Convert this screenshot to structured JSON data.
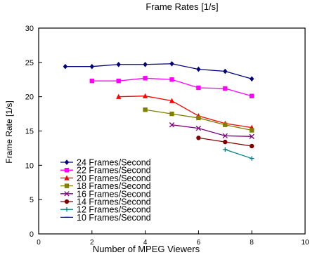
{
  "chart_data": {
    "type": "line",
    "title": "Frame Rates [1/s]",
    "xlabel": "Number of MPEG Viewers",
    "ylabel": "Frame Rate [1/s]",
    "xlim": [
      0,
      10
    ],
    "ylim": [
      0,
      30
    ],
    "xticks": [
      0,
      2,
      4,
      6,
      8,
      10
    ],
    "yticks": [
      0,
      5,
      10,
      15,
      20,
      25,
      30
    ],
    "grid": false,
    "legend_position": "bottom-left",
    "series": [
      {
        "name": "24 Frames/Second",
        "color": "#000080",
        "marker": "diamond",
        "x": [
          1,
          2,
          3,
          4,
          5,
          6,
          7,
          8
        ],
        "y": [
          24.4,
          24.4,
          24.7,
          24.7,
          24.8,
          24.0,
          23.7,
          22.6
        ]
      },
      {
        "name": "22 Frames/Second",
        "color": "#ff00ff",
        "marker": "square",
        "x": [
          2,
          3,
          4,
          5,
          6,
          7,
          8
        ],
        "y": [
          22.3,
          22.3,
          22.7,
          22.5,
          21.3,
          21.2,
          20.1
        ]
      },
      {
        "name": "20 Frames/Second",
        "color": "#ff0000",
        "marker": "triangle",
        "x": [
          3,
          4,
          5,
          6,
          7,
          8
        ],
        "y": [
          20.0,
          20.1,
          19.4,
          17.2,
          16.1,
          15.5
        ]
      },
      {
        "name": "18 Frames/Second",
        "color": "#808000",
        "marker": "square",
        "x": [
          4,
          5,
          6,
          7,
          8
        ],
        "y": [
          18.1,
          17.5,
          16.9,
          15.9,
          15.1
        ]
      },
      {
        "name": "16 Frames/Second",
        "color": "#800080",
        "marker": "x",
        "x": [
          5,
          6,
          7,
          8
        ],
        "y": [
          15.9,
          15.4,
          14.3,
          14.2
        ]
      },
      {
        "name": "14 Frames/Second",
        "color": "#800000",
        "marker": "circle",
        "x": [
          6,
          7,
          8
        ],
        "y": [
          14.0,
          13.4,
          12.8
        ]
      },
      {
        "name": "12 Frames/Second",
        "color": "#008080",
        "marker": "plus",
        "x": [
          7,
          8
        ],
        "y": [
          12.3,
          11.0
        ]
      },
      {
        "name": "10 Frames/Second",
        "color": "#0000ff",
        "marker": "dash",
        "x": [],
        "y": []
      }
    ]
  }
}
